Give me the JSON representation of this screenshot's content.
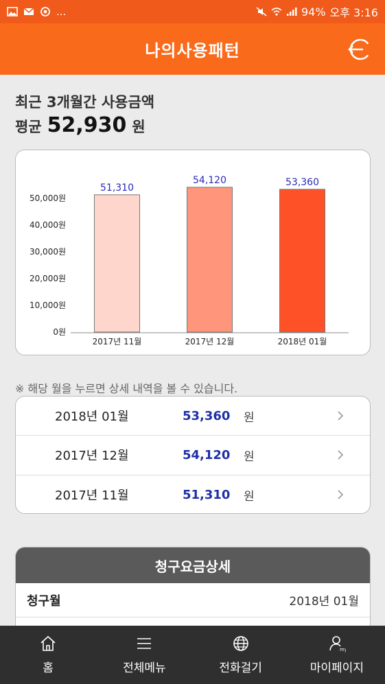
{
  "status_bar": {
    "battery": "94%",
    "time": "오후 3:16",
    "more": "..."
  },
  "header": {
    "title": "나의사용패턴"
  },
  "summary": {
    "title": "최근 3개월간 사용금액",
    "avg_label": "평균",
    "avg_value": "52,930",
    "unit": "원"
  },
  "chart_data": {
    "type": "bar",
    "categories": [
      "2017년 11월",
      "2017년 12월",
      "2018년 01월"
    ],
    "values": [
      51310,
      54120,
      53360
    ],
    "data_labels": [
      "51,310",
      "54,120",
      "53,360"
    ],
    "y_ticks": [
      "0원",
      "10,000원",
      "20,000원",
      "30,000원",
      "40,000원",
      "50,000원"
    ],
    "ylim": [
      0,
      50000
    ],
    "colors": [
      "#ffd6cc",
      "#ff957a",
      "#ff5128"
    ],
    "label_color": "#2a2ab8"
  },
  "notice": "※ 해당 월을 누르면 상세 내역을 볼 수 있습니다.",
  "months": [
    {
      "month": "2018년 01월",
      "amount": "53,360",
      "unit": "원"
    },
    {
      "month": "2017년 12월",
      "amount": "54,120",
      "unit": "원"
    },
    {
      "month": "2017년 11월",
      "amount": "51,310",
      "unit": "원"
    }
  ],
  "detail": {
    "title": "청구요금상세",
    "rows": [
      {
        "key": "청구월",
        "value": "2018년 01월"
      }
    ]
  },
  "nav": {
    "items": [
      {
        "label": "홈",
        "icon": "home-icon"
      },
      {
        "label": "전체메뉴",
        "icon": "menu-icon"
      },
      {
        "label": "전화걸기",
        "icon": "globe-icon"
      },
      {
        "label": "마이페이지",
        "icon": "person-icon"
      }
    ]
  }
}
